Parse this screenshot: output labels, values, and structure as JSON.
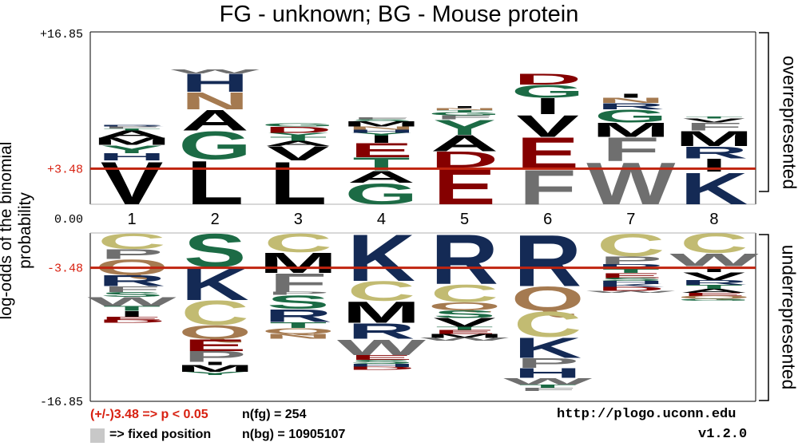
{
  "title": "FG - unknown;  BG - Mouse protein",
  "ylabel": "log-odds of the binomial probability",
  "side_labels": {
    "over": "overrepresented",
    "under": "underrepresented"
  },
  "footer": {
    "threshold": "(+/-)3.48 => p < 0.05",
    "fixed": "=> fixed position",
    "nfg": "n(fg) = 254",
    "nbg": "n(bg) = 10905107",
    "url": "http://plogo.uconn.edu",
    "version": "v1.2.0"
  },
  "colors": {
    "threshold_line": "#c0240f",
    "threshold_text": "#d82010",
    "V": "#000000",
    "L": "#000000",
    "M": "#000000",
    "I": "#000000",
    "A": "#000000",
    "F": "#6f6f6f",
    "W": "#6f6f6f",
    "P": "#6f6f6f",
    "G": "#1c6b45",
    "T": "#1c6b45",
    "S": "#1c6b45",
    "Y": "#1c6b45",
    "E": "#850000",
    "D": "#850000",
    "K": "#142a55",
    "R": "#142a55",
    "H": "#142a55",
    "N": "#a57a50",
    "Q": "#a57a50",
    "C": "#c2bb72"
  },
  "chart_data": {
    "type": "logo",
    "y_ticks": [
      "+16.85",
      "+3.48",
      "0.00",
      "-3.48",
      "-16.85"
    ],
    "ylim": [
      -16.85,
      16.85
    ],
    "threshold": 3.48,
    "positions": [
      "1",
      "2",
      "3",
      "4",
      "5",
      "6",
      "7",
      "8"
    ],
    "over": [
      [
        [
          "V",
          4.3
        ],
        [
          "H",
          0.7
        ],
        [
          "Y",
          0.8
        ],
        [
          "M",
          0.7
        ],
        [
          "A",
          0.7
        ],
        [
          "T",
          0.2
        ],
        [
          "F",
          0.2
        ],
        [
          "R",
          0.15
        ]
      ],
      [
        [
          "L",
          4.4
        ],
        [
          "G",
          2.8
        ],
        [
          "A",
          2.1
        ],
        [
          "N",
          1.7
        ],
        [
          "H",
          1.8
        ],
        [
          "W",
          0.4
        ]
      ],
      [
        [
          "L",
          4.3
        ],
        [
          "V",
          1.4
        ],
        [
          "A",
          0.5
        ],
        [
          "T",
          0.4
        ],
        [
          "Y",
          0.4
        ],
        [
          "D",
          0.6
        ],
        [
          "G",
          0.3
        ]
      ],
      [
        [
          "G",
          2.1
        ],
        [
          "A",
          1.2
        ],
        [
          "T",
          1.3
        ],
        [
          "E",
          1.4
        ],
        [
          "I",
          0.7
        ],
        [
          "Y",
          0.3
        ],
        [
          "H",
          0.3
        ],
        [
          "N",
          0.3
        ],
        [
          "M",
          0.5
        ],
        [
          "S",
          0.2
        ],
        [
          "F",
          0.2
        ]
      ],
      [
        [
          "E",
          3.6
        ],
        [
          "D",
          1.6
        ],
        [
          "A",
          1.6
        ],
        [
          "Y",
          1.5
        ],
        [
          "F",
          0.4
        ],
        [
          "G",
          0.3
        ],
        [
          "T",
          0.2
        ],
        [
          "N",
          0.2
        ],
        [
          "I",
          0.2
        ]
      ],
      [
        [
          "F",
          3.5
        ],
        [
          "E",
          3.1
        ],
        [
          "V",
          2.2
        ],
        [
          "I",
          1.6
        ],
        [
          "G",
          1.3
        ],
        [
          "D",
          1.1
        ]
      ],
      [
        [
          "W",
          4.2
        ],
        [
          "F",
          2.4
        ],
        [
          "M",
          1.4
        ],
        [
          "G",
          1.3
        ],
        [
          "R",
          0.6
        ],
        [
          "N",
          0.5
        ],
        [
          "I",
          0.4
        ]
      ],
      [
        [
          "K",
          3.2
        ],
        [
          "I",
          1.3
        ],
        [
          "R",
          1.2
        ],
        [
          "M",
          1.5
        ],
        [
          "F",
          0.8
        ],
        [
          "V",
          0.4
        ],
        [
          "T",
          0.2
        ]
      ]
    ],
    "under": [
      [
        [
          "C",
          1.6
        ],
        [
          "P",
          1.0
        ],
        [
          "Q",
          1.6
        ],
        [
          "R",
          1.1
        ],
        [
          "F",
          0.6
        ],
        [
          "S",
          0.5
        ],
        [
          "W",
          0.9
        ],
        [
          "T",
          0.5
        ],
        [
          "I",
          0.6
        ],
        [
          "E",
          0.3
        ],
        [
          "D",
          0.3
        ]
      ],
      [
        [
          "S",
          3.4
        ],
        [
          "K",
          3.3
        ],
        [
          "C",
          2.5
        ],
        [
          "Q",
          1.4
        ],
        [
          "E",
          1.2
        ],
        [
          "P",
          1.1
        ],
        [
          "I",
          0.3
        ],
        [
          "M",
          0.7
        ],
        [
          "Y",
          0.3
        ]
      ],
      [
        [
          "C",
          1.9
        ],
        [
          "M",
          2.1
        ],
        [
          "F",
          1.9
        ],
        [
          "P",
          0.3
        ],
        [
          "S",
          1.4
        ],
        [
          "R",
          1.3
        ],
        [
          "T",
          0.6
        ],
        [
          "Q",
          0.6
        ],
        [
          "N",
          0.5
        ]
      ],
      [
        [
          "K",
          4.8
        ],
        [
          "C",
          2.0
        ],
        [
          "M",
          2.2
        ],
        [
          "R",
          1.6
        ],
        [
          "W",
          1.6
        ],
        [
          "E",
          0.5
        ],
        [
          "S",
          0.4
        ],
        [
          "H",
          0.3
        ],
        [
          "D",
          0.3
        ]
      ],
      [
        [
          "R",
          5.1
        ],
        [
          "C",
          1.8
        ],
        [
          "Q",
          0.8
        ],
        [
          "S",
          0.8
        ],
        [
          "V",
          0.9
        ],
        [
          "T",
          0.3
        ],
        [
          "E",
          0.4
        ],
        [
          "M",
          0.4
        ],
        [
          "W",
          0.3
        ]
      ],
      [
        [
          "R",
          5.3
        ],
        [
          "Q",
          2.5
        ],
        [
          "C",
          2.6
        ],
        [
          "K",
          2.1
        ],
        [
          "P",
          1.0
        ],
        [
          "H",
          1.0
        ],
        [
          "W",
          0.7
        ],
        [
          "T",
          0.3
        ],
        [
          "F",
          0.3
        ]
      ],
      [
        [
          "C",
          2.3
        ],
        [
          "P",
          0.8
        ],
        [
          "R",
          0.5
        ],
        [
          "T",
          0.4
        ],
        [
          "E",
          0.5
        ],
        [
          "S",
          0.3
        ],
        [
          "H",
          0.3
        ],
        [
          "K",
          0.3
        ],
        [
          "D",
          0.4
        ],
        [
          "W",
          0.2
        ]
      ],
      [
        [
          "C",
          2.0
        ],
        [
          "W",
          1.3
        ],
        [
          "I",
          0.6
        ],
        [
          "V",
          0.8
        ],
        [
          "R",
          0.5
        ],
        [
          "T",
          0.4
        ],
        [
          "A",
          0.4
        ],
        [
          "E",
          0.3
        ],
        [
          "Q",
          0.3
        ],
        [
          "G",
          0.2
        ]
      ]
    ]
  }
}
